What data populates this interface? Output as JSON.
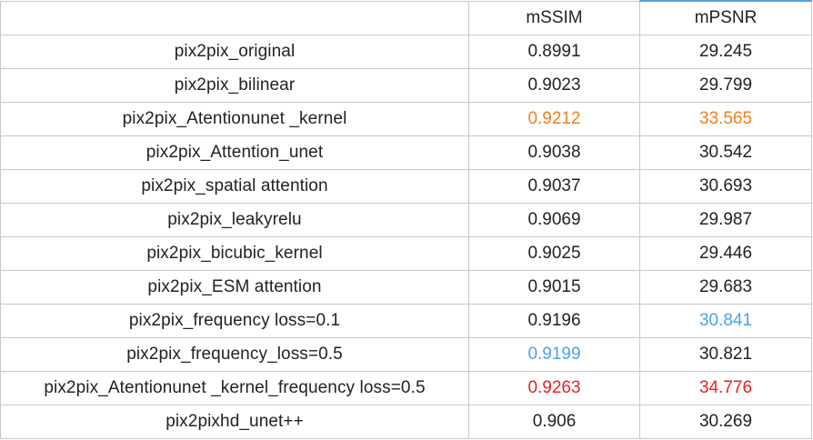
{
  "table": {
    "headers": [
      "",
      "mSSIM",
      "mPSNR"
    ],
    "rows": [
      {
        "name": "pix2pix_original",
        "mssim": "0.8991",
        "mpsnr": "29.245",
        "mssim_color": "#222222",
        "mpsnr_color": "#222222"
      },
      {
        "name": "pix2pix_bilinear",
        "mssim": "0.9023",
        "mpsnr": "29.799",
        "mssim_color": "#222222",
        "mpsnr_color": "#222222"
      },
      {
        "name": "pix2pix_Atentionunet _kernel",
        "mssim": "0.9212",
        "mpsnr": "33.565",
        "mssim_color": "#f07f1e",
        "mpsnr_color": "#f07f1e"
      },
      {
        "name": "pix2pix_Attention_unet",
        "mssim": "0.9038",
        "mpsnr": "30.542",
        "mssim_color": "#222222",
        "mpsnr_color": "#222222"
      },
      {
        "name": "pix2pix_spatial attention",
        "mssim": "0.9037",
        "mpsnr": "30.693",
        "mssim_color": "#222222",
        "mpsnr_color": "#222222"
      },
      {
        "name": "pix2pix_leakyrelu",
        "mssim": "0.9069",
        "mpsnr": "29.987",
        "mssim_color": "#222222",
        "mpsnr_color": "#222222"
      },
      {
        "name": "pix2pix_bicubic_kernel",
        "mssim": "0.9025",
        "mpsnr": "29.446",
        "mssim_color": "#222222",
        "mpsnr_color": "#222222"
      },
      {
        "name": "pix2pix_ESM attention",
        "mssim": "0.9015",
        "mpsnr": "29.683",
        "mssim_color": "#222222",
        "mpsnr_color": "#222222"
      },
      {
        "name": "pix2pix_frequency  loss=0.1",
        "mssim": "0.9196",
        "mpsnr": "30.841",
        "mssim_color": "#222222",
        "mpsnr_color": "#4aa3e8"
      },
      {
        "name": "pix2pix_frequency_loss=0.5",
        "mssim": "0.9199",
        "mpsnr": "30.821",
        "mssim_color": "#4aa3e8",
        "mpsnr_color": "#222222"
      },
      {
        "name": "pix2pix_Atentionunet _kernel_frequency loss=0.5",
        "mssim": "0.9263",
        "mpsnr": "34.776",
        "mssim_color": "#f01e1e",
        "mpsnr_color": "#f01e1e"
      },
      {
        "name": "pix2pixhd_unet++",
        "mssim": "0.906",
        "mpsnr": "30.269",
        "mssim_color": "#222222",
        "mpsnr_color": "#222222"
      }
    ]
  }
}
